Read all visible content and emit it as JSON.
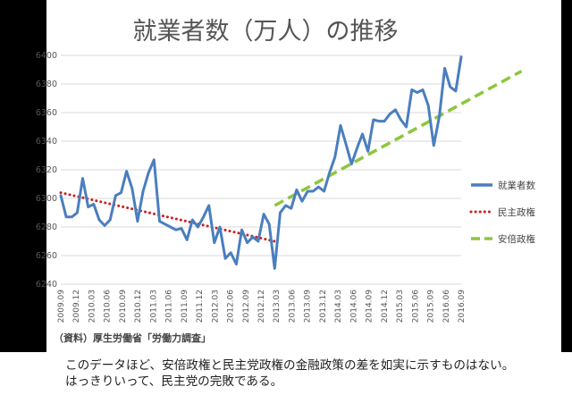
{
  "chart_data": {
    "type": "line",
    "title": "就業者数（万人）の推移",
    "source": "（資料）厚生労働省「労働力調査」",
    "ylim": [
      6240,
      6400
    ],
    "yticks": [
      6240,
      6260,
      6280,
      6300,
      6320,
      6340,
      6360,
      6380,
      6400
    ],
    "x_tick_labels": [
      "2009.09",
      "2009.12",
      "2010.03",
      "2010.06",
      "2010.09",
      "2010.12",
      "2011.03",
      "2011.06",
      "2011.09",
      "2011.12",
      "2012.03",
      "2012.06",
      "2012.09",
      "2012.12",
      "2013.03",
      "2013.06",
      "2013.09",
      "2013.12",
      "2014.03",
      "2014.06",
      "2014.09",
      "2014.12",
      "2015.03",
      "2015.06",
      "2015.09",
      "2016.06",
      "2016.09"
    ],
    "x_start": "2009-09",
    "legend_position": "right",
    "grid": true,
    "series": [
      {
        "name": "就業者数",
        "style": "solid",
        "color": "#4a7ebf",
        "values": [
          6302,
          6287,
          6287,
          6290,
          6314,
          6294,
          6296,
          6285,
          6281,
          6285,
          6302,
          6304,
          6319,
          6307,
          6284,
          6305,
          6318,
          6327,
          6284,
          6282,
          6280,
          6278,
          6279,
          6271,
          6285,
          6280,
          6287,
          6295,
          6269,
          6280,
          6258,
          6262,
          6254,
          6278,
          6269,
          6273,
          6270,
          6289,
          6282,
          6251,
          6290,
          6295,
          6293,
          6306,
          6298,
          6305,
          6305,
          6308,
          6305,
          6318,
          6329,
          6351,
          6338,
          6324,
          6335,
          6345,
          6333,
          6355,
          6354,
          6354,
          6359,
          6362,
          6355,
          6350,
          6376,
          6374,
          6376,
          6365,
          6337,
          6357,
          6391,
          6378,
          6375,
          6399
        ]
      },
      {
        "name": "民主政権",
        "style": "dotted",
        "color": "#cc1f1f",
        "line": {
          "x": [
            "2009-09",
            "2012-12"
          ],
          "y": [
            6304,
            6270
          ]
        }
      },
      {
        "name": "安倍政権",
        "style": "dashed",
        "color": "#8dc63f",
        "line": {
          "x": [
            "2012-12",
            "2016-09"
          ],
          "y": [
            6295,
            6389
          ]
        }
      }
    ]
  },
  "caption": {
    "line1": "このデータほど、安倍政権と民主党政権の金融政策の差を如実に示すものはない。",
    "line2": "はっきりいって、民主党の完敗である。"
  }
}
